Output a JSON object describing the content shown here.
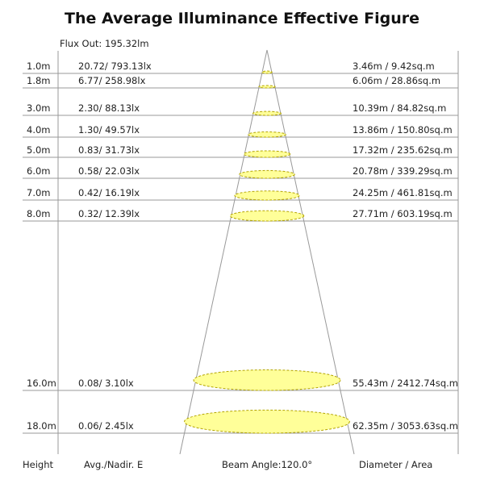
{
  "title": "The Average Illuminance Effective Figure",
  "flux_out": "Flux Out: 195.32lm",
  "beam_angle": "Beam Angle:120.0°",
  "footer": {
    "height": "Height",
    "illuminance": "Avg./Nadir. E",
    "diameter": "Diameter / Area"
  },
  "colors": {
    "spot_fill": "#ffff99",
    "spot_stroke": "#b3a400",
    "line": "#999999"
  },
  "rows": [
    {
      "height": "1.0m",
      "illuminance": "20.72/ 793.13lx",
      "diameter_area": "3.46m / 9.42sq.m"
    },
    {
      "height": "1.8m",
      "illuminance": "6.77/ 258.98lx",
      "diameter_area": "6.06m / 28.86sq.m"
    },
    {
      "height": "3.0m",
      "illuminance": "2.30/ 88.13lx",
      "diameter_area": "10.39m / 84.82sq.m"
    },
    {
      "height": "4.0m",
      "illuminance": "1.30/ 49.57lx",
      "diameter_area": "13.86m / 150.80sq.m"
    },
    {
      "height": "5.0m",
      "illuminance": "0.83/ 31.73lx",
      "diameter_area": "17.32m / 235.62sq.m"
    },
    {
      "height": "6.0m",
      "illuminance": "0.58/ 22.03lx",
      "diameter_area": "20.78m / 339.29sq.m"
    },
    {
      "height": "7.0m",
      "illuminance": "0.42/ 16.19lx",
      "diameter_area": "24.25m / 461.81sq.m"
    },
    {
      "height": "8.0m",
      "illuminance": "0.32/ 12.39lx",
      "diameter_area": "27.71m / 603.19sq.m"
    },
    {
      "height": "16.0m",
      "illuminance": "0.08/ 3.10lx",
      "diameter_area": "55.43m / 2412.74sq.m"
    },
    {
      "height": "18.0m",
      "illuminance": "0.06/ 2.45lx",
      "diameter_area": "62.35m / 3053.63sq.m"
    }
  ]
}
